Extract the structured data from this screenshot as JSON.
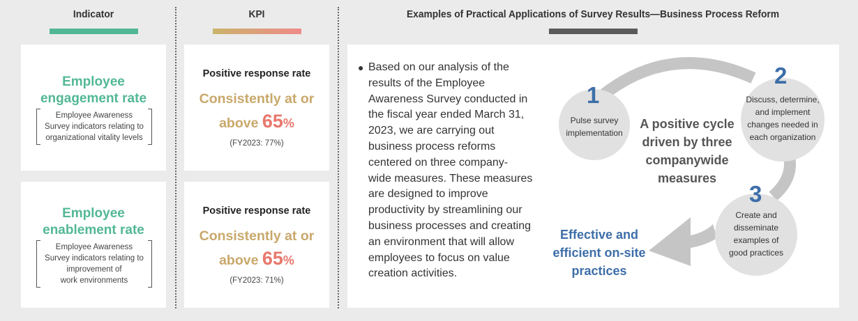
{
  "headers": {
    "indicator": "Indicator",
    "kpi": "KPI",
    "examples": "Examples of Practical Applications of Survey Results—Business Process Reform"
  },
  "colors": {
    "indicator_bar": "#52b894",
    "kpi_bar_start": "#c9b46a",
    "kpi_bar_end": "#ef8a8a",
    "examples_bar": "#5a5a5a",
    "title_green": "#52b894",
    "kpi_gold": "#c9a86b",
    "kpi_coral": "#e8786c",
    "accent_blue": "#3d6ea8"
  },
  "rows": [
    {
      "indicator_title_lines": [
        "Employee",
        "engagement rate"
      ],
      "indicator_note_lines": [
        "Employee Awareness",
        "Survey indicators relating to",
        "organizational vitality levels"
      ],
      "kpi_label": "Positive response rate",
      "kpi_line1": "Consistently at or",
      "kpi_line2_prefix": "above ",
      "kpi_number": "65",
      "kpi_unit": "%",
      "kpi_fy": "(FY2023: 77%)"
    },
    {
      "indicator_title_lines": [
        "Employee",
        "enablement rate"
      ],
      "indicator_note_lines": [
        "Employee Awareness",
        "Survey indicators relating to",
        "improvement of",
        "work environments"
      ],
      "kpi_label": "Positive response rate",
      "kpi_line1": "Consistently at or",
      "kpi_line2_prefix": "above ",
      "kpi_number": "65",
      "kpi_unit": "%",
      "kpi_fy": "(FY2023: 71%)"
    }
  ],
  "examples": {
    "bullet_text_lines": [
      "Based on our analysis of the",
      "results of the Employee",
      "Awareness Survey conducted in",
      "the fiscal year ended March 31,",
      "2023, we are carrying out",
      "business process reforms",
      "centered on three company-",
      "wide measures. These measures",
      "are designed to improve",
      "productivity by streamlining our",
      "business processes and creating",
      "an environment that will allow",
      "employees to focus on value",
      "creation activities."
    ],
    "cycle_center_lines": [
      "A positive cycle",
      "driven by three",
      "companywide",
      "measures"
    ],
    "steps": [
      {
        "number": "1",
        "text_lines": [
          "Pulse survey",
          "implementation"
        ]
      },
      {
        "number": "2",
        "text_lines": [
          "Discuss, determine,",
          "and implement",
          "changes needed in",
          "each organization"
        ]
      },
      {
        "number": "3",
        "text_lines": [
          "Create and",
          "disseminate",
          "examples of",
          "good practices"
        ]
      }
    ],
    "outcome_lines": [
      "Effective and",
      "efficient on-site",
      "practices"
    ]
  }
}
